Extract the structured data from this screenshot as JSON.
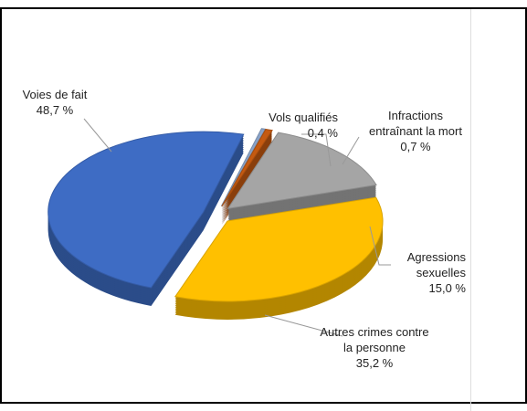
{
  "chart_data": {
    "type": "pie",
    "categories": [
      "Vols qualifiés",
      "Infractions entraînant la mort",
      "Agressions sexuelles",
      "Autres crimes contre la personne",
      "Voies de fait"
    ],
    "values": [
      0.4,
      0.7,
      15.0,
      35.2,
      48.7
    ],
    "value_labels": [
      "0,4 %",
      "0,7 %",
      "15,0 %",
      "35,2 %",
      "48,7 %"
    ],
    "colors": [
      "#8aa3c8",
      "#c55a11",
      "#a5a5a5",
      "#ffc000",
      "#3e6cc4"
    ]
  }
}
